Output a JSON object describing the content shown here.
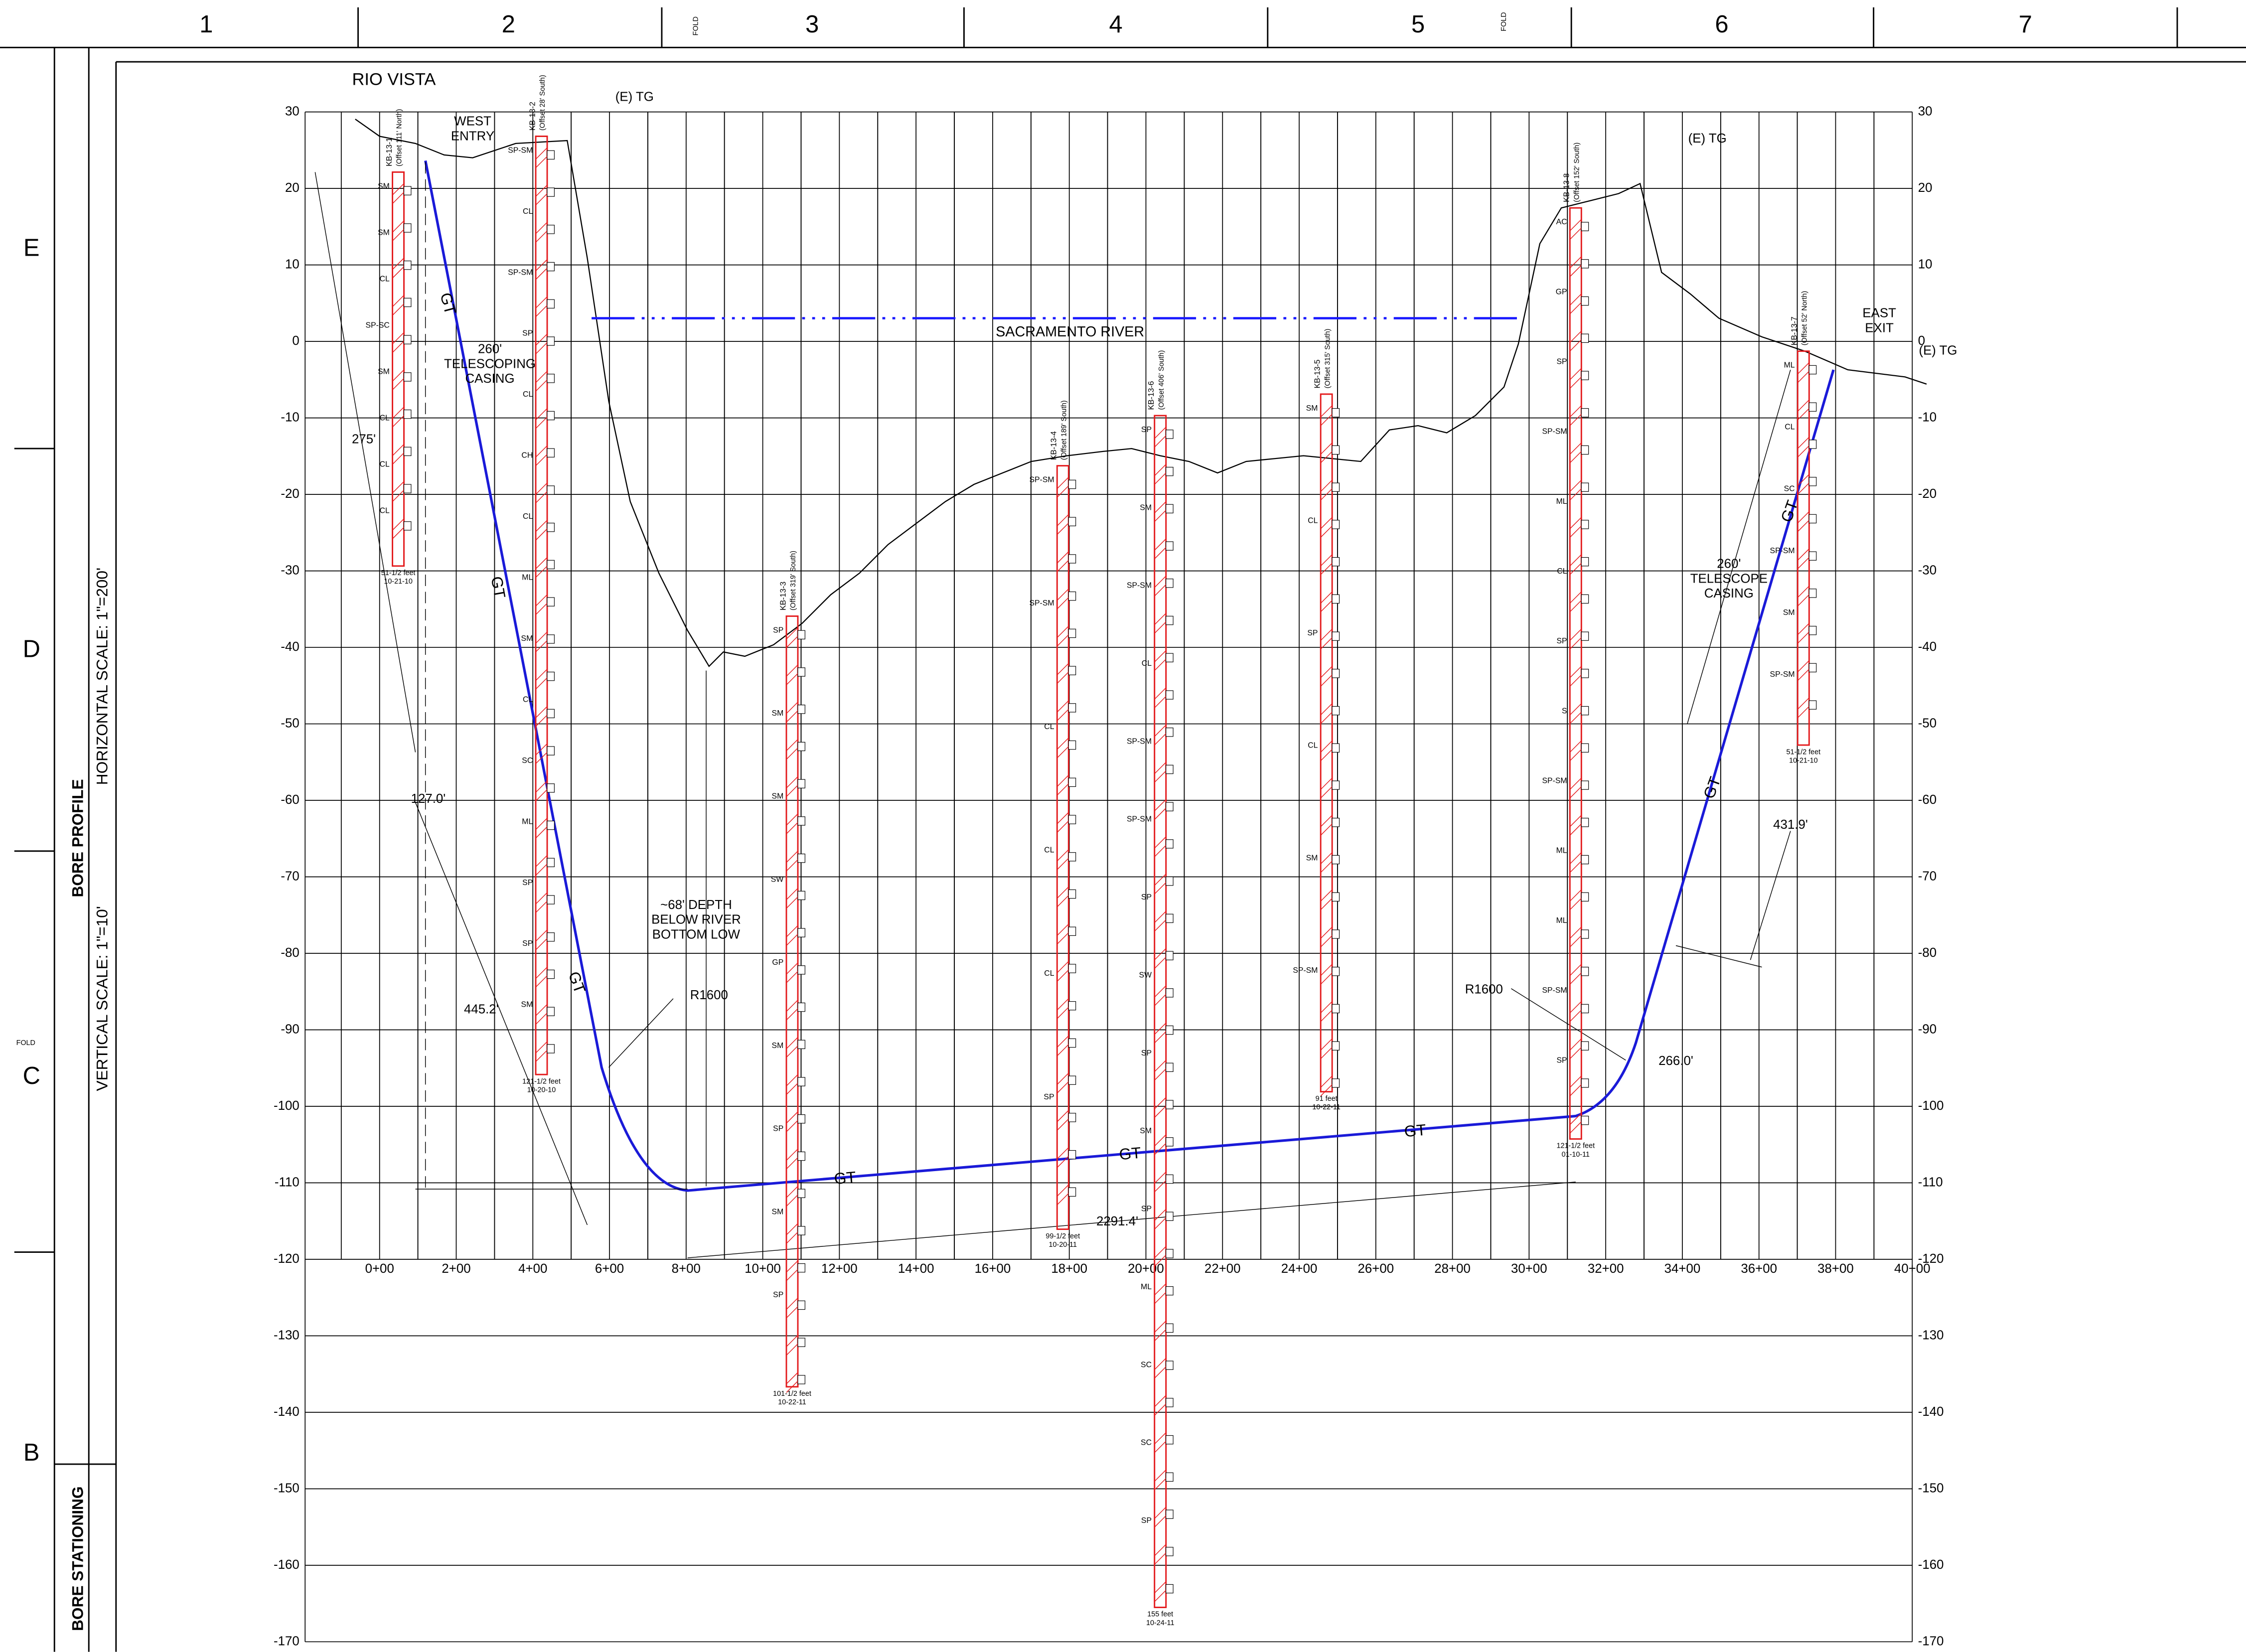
{
  "sheet": {
    "columns": [
      "1",
      "2",
      "3",
      "4",
      "5",
      "6",
      "7"
    ],
    "rows": [
      "E",
      "D",
      "C",
      "B"
    ],
    "fold": [
      "FOLD",
      "FOLD",
      "FOLD"
    ],
    "side_labels": [
      "BORE PROFILE",
      "BORE STATIONING"
    ],
    "scales": [
      "HORIZONTAL SCALE: 1\"=200'",
      "VERTICAL SCALE: 1\"=10'"
    ]
  },
  "axis": {
    "elevations": [
      30,
      20,
      10,
      0,
      -10,
      -20,
      -30,
      -40,
      -50,
      -60,
      -70,
      -80,
      -90,
      -100,
      -110,
      -120,
      -130,
      -140,
      -150,
      -160,
      -170
    ],
    "stations": [
      "0+00",
      "2+00",
      "4+00",
      "6+00",
      "8+00",
      "10+00",
      "12+00",
      "14+00",
      "16+00",
      "18+00",
      "20+00",
      "22+00",
      "24+00",
      "26+00",
      "28+00",
      "30+00",
      "32+00",
      "34+00",
      "36+00",
      "38+00",
      "40+00"
    ]
  },
  "annotations": [
    {
      "text": [
        "RIO VISTA"
      ]
    },
    {
      "text": [
        "WEST",
        "ENTRY"
      ]
    },
    {
      "text": [
        "(E) TG"
      ]
    },
    {
      "text": [
        "(E) TG"
      ]
    },
    {
      "text": [
        "(E) TG"
      ]
    },
    {
      "text": [
        "260'",
        "TELESCOPING",
        "CASING"
      ]
    },
    {
      "text": [
        "275'"
      ]
    },
    {
      "text": [
        "127.0'"
      ]
    },
    {
      "text": [
        "445.2'"
      ]
    },
    {
      "text": [
        "GT"
      ]
    },
    {
      "text": [
        "GT"
      ]
    },
    {
      "text": [
        "GT"
      ]
    },
    {
      "text": [
        "GT"
      ]
    },
    {
      "text": [
        "GT"
      ]
    },
    {
      "text": [
        "GT"
      ]
    },
    {
      "text": [
        "GT"
      ]
    },
    {
      "text": [
        "GT"
      ]
    },
    {
      "text": [
        "R1600"
      ]
    },
    {
      "text": [
        "R1600"
      ]
    },
    {
      "text": [
        "~68' DEPTH",
        "BELOW RIVER",
        "BOTTOM LOW"
      ]
    },
    {
      "text": [
        "SACRAMENTO RIVER"
      ]
    },
    {
      "text": [
        "2291.4'"
      ]
    },
    {
      "text": [
        "266.0'"
      ]
    },
    {
      "text": [
        "431.9'"
      ]
    },
    {
      "text": [
        "260'",
        "TELESCOPE",
        "CASING"
      ]
    },
    {
      "text": [
        "EAST",
        "EXIT"
      ]
    }
  ],
  "borings": [
    {
      "name": "KB-13-1",
      "offset": "(Offset 111' North)",
      "depth": "51-1/2 feet",
      "date": "10-21-10",
      "soils": [
        "SM",
        "SM",
        "CL",
        "SP-SC",
        "SM",
        "CL",
        "CL",
        "CL"
      ]
    },
    {
      "name": "KB-13-2",
      "offset": "(Offset 28' South)",
      "depth": "121-1/2 feet",
      "date": "10-20-10",
      "soils": [
        "SP-SM",
        "CL",
        "SP-SM",
        "SP",
        "CL",
        "CH",
        "CL",
        "ML",
        "SM",
        "CL",
        "SC",
        "ML",
        "SP",
        "SP",
        "SM"
      ]
    },
    {
      "name": "KB-13-3",
      "offset": "(Offset 319' South)",
      "depth": "101-1/2 feet",
      "date": "10-22-11",
      "soils": [
        "SP",
        "SM",
        "SM",
        "SW",
        "GP",
        "SM",
        "SP",
        "SM",
        "SP"
      ]
    },
    {
      "name": "KB-13-4",
      "offset": "(Offset 189' South)",
      "depth": "99-1/2 feet",
      "date": "10-20-11",
      "soils": [
        "SP-SM",
        "SP-SM",
        "CL",
        "CL",
        "CL",
        "SP"
      ]
    },
    {
      "name": "KB-13-6",
      "offset": "(Offset 406' South)",
      "depth": "155 feet",
      "date": "10-24-11",
      "soils": [
        "SP",
        "SM",
        "SP-SM",
        "CL",
        "SP-SM",
        "SP-SM",
        "SP",
        "SW",
        "SP",
        "SM",
        "SP",
        "ML",
        "SC",
        "SC",
        "SP"
      ]
    },
    {
      "name": "KB-13-5",
      "offset": "(Offset 315' South)",
      "depth": "91 feet",
      "date": "10-22-11",
      "soils": [
        "SM",
        "CL",
        "SP",
        "CL",
        "SM",
        "SP-SM"
      ]
    },
    {
      "name": "KB-13-8",
      "offset": "(Offset 152' South)",
      "depth": "121-1/2 feet",
      "date": "01-10-11",
      "soils": [
        "AC",
        "GP",
        "SP",
        "SP-SM",
        "ML",
        "CL",
        "SP",
        "S",
        "SP-SM",
        "ML",
        "ML",
        "SP-SM",
        "SP"
      ]
    },
    {
      "name": "KB-13-7",
      "offset": "(Offset 52' North)",
      "depth": "51-1/2 feet",
      "date": "10-21-10",
      "soils": [
        "ML",
        "CL",
        "SC",
        "SP-SM",
        "SM",
        "SP-SM"
      ]
    }
  ]
}
